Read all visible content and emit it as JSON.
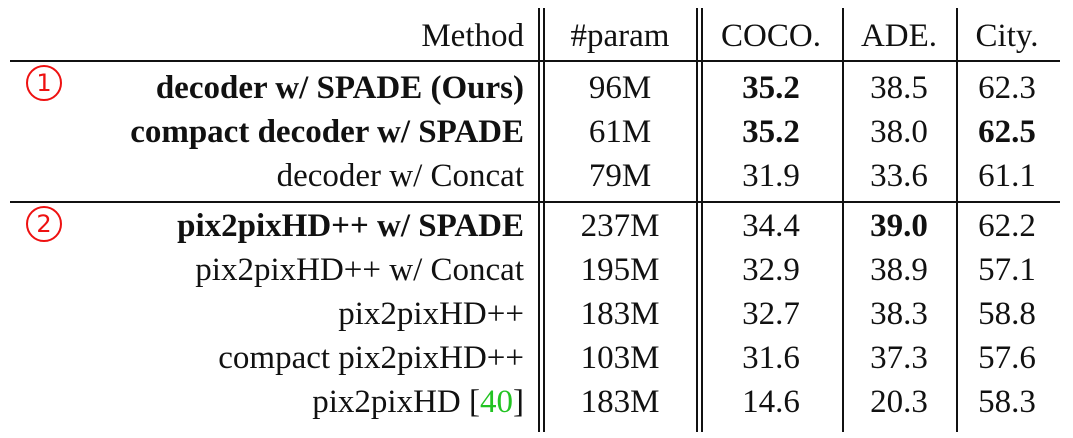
{
  "header": {
    "method": "Method",
    "param": "#param",
    "coco": "COCO.",
    "ade": "ADE.",
    "city": "City."
  },
  "markers": [
    "1",
    "2"
  ],
  "rows": [
    {
      "method": "decoder w/ SPADE (Ours)",
      "method_bold": true,
      "param": "96M",
      "coco": "35.2",
      "coco_bold": true,
      "ade": "38.5",
      "ade_bold": false,
      "city": "62.3",
      "city_bold": false
    },
    {
      "method": "compact decoder w/ SPADE",
      "method_bold": true,
      "param": "61M",
      "coco": "35.2",
      "coco_bold": true,
      "ade": "38.0",
      "ade_bold": false,
      "city": "62.5",
      "city_bold": true
    },
    {
      "method": "decoder w/ Concat",
      "method_bold": false,
      "param": "79M",
      "coco": "31.9",
      "coco_bold": false,
      "ade": "33.6",
      "ade_bold": false,
      "city": "61.1",
      "city_bold": false
    },
    {
      "method": "pix2pixHD++ w/ SPADE",
      "method_bold": true,
      "param": "237M",
      "coco": "34.4",
      "coco_bold": false,
      "ade": "39.0",
      "ade_bold": true,
      "city": "62.2",
      "city_bold": false
    },
    {
      "method": "pix2pixHD++ w/ Concat",
      "method_bold": false,
      "param": "195M",
      "coco": "32.9",
      "coco_bold": false,
      "ade": "38.9",
      "ade_bold": false,
      "city": "57.1",
      "city_bold": false
    },
    {
      "method": "pix2pixHD++",
      "method_bold": false,
      "param": "183M",
      "coco": "32.7",
      "coco_bold": false,
      "ade": "38.3",
      "ade_bold": false,
      "city": "58.8",
      "city_bold": false
    },
    {
      "method": "compact pix2pixHD++",
      "method_bold": false,
      "param": "103M",
      "coco": "31.6",
      "coco_bold": false,
      "ade": "37.3",
      "ade_bold": false,
      "city": "57.6",
      "city_bold": false
    },
    {
      "method": "pix2pixHD [",
      "method_ref": "40",
      "method_tail": "]",
      "method_bold": false,
      "param": "183M",
      "coco": "14.6",
      "coco_bold": false,
      "ade": "20.3",
      "ade_bold": false,
      "city": "58.3",
      "city_bold": false
    }
  ],
  "colors": {
    "marker": "#ee1111",
    "reference": "#22c322",
    "text": "#111111"
  }
}
